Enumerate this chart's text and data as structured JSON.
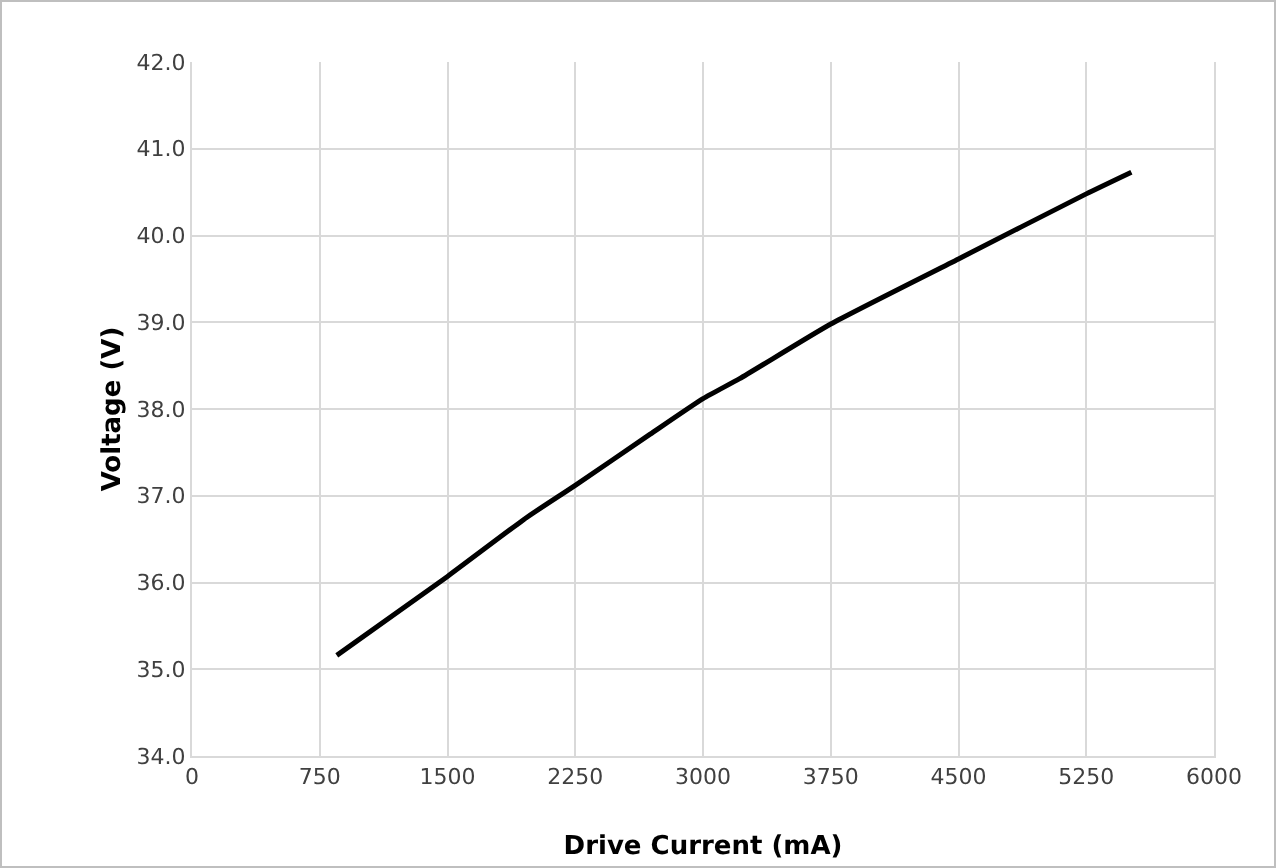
{
  "chart_data": {
    "type": "line",
    "xlabel": "Drive Current (mA)",
    "ylabel": "Voltage (V)",
    "x": [
      850,
      1500,
      1965,
      2250,
      2690,
      3000,
      3215,
      3750,
      4500,
      5250,
      5515
    ],
    "series": [
      {
        "color": "#000000",
        "values": [
          35.16,
          36.07,
          36.75,
          37.12,
          37.71,
          38.12,
          38.35,
          38.98,
          39.73,
          40.48,
          40.73
        ]
      }
    ],
    "xlim": [
      0,
      6000
    ],
    "xticks": [
      0,
      750,
      1500,
      2250,
      3000,
      3750,
      4500,
      5250,
      6000
    ],
    "ylim": [
      34,
      42
    ],
    "yticks": [
      {
        "value": 34,
        "label": "34.0"
      },
      {
        "value": 35,
        "label": "35.0"
      },
      {
        "value": 36,
        "label": "36.0"
      },
      {
        "value": 37,
        "label": "37.0"
      },
      {
        "value": 38,
        "label": "38.0"
      },
      {
        "value": 39,
        "label": "39.0"
      },
      {
        "value": 40,
        "label": "40.0"
      },
      {
        "value": 41,
        "label": "41.0"
      },
      {
        "value": 42,
        "label": "42.0"
      }
    ],
    "grid": true,
    "legend": false,
    "marker": "none",
    "line_style": "solid"
  }
}
